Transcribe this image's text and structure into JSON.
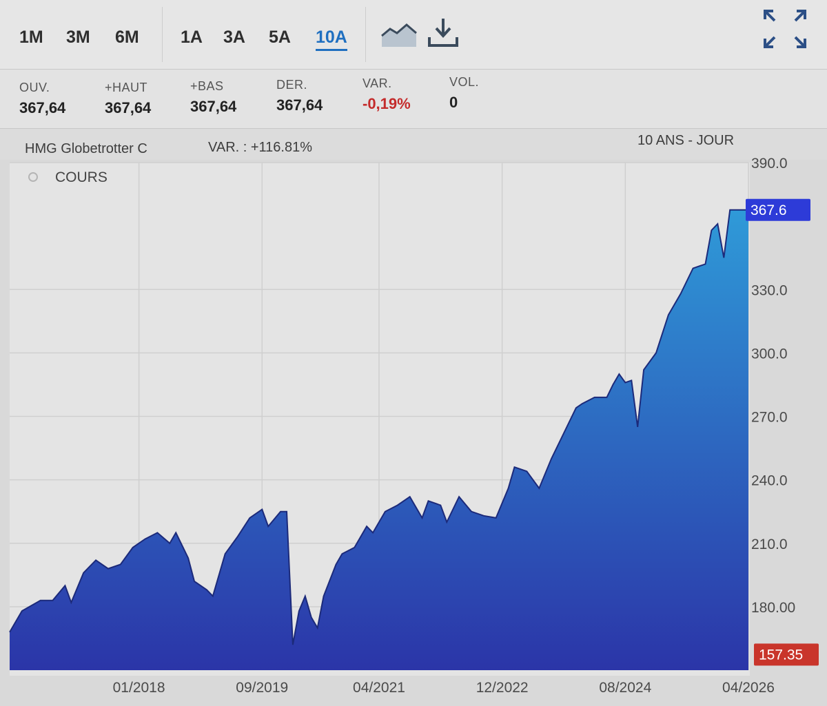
{
  "toolbar": {
    "ranges": [
      "1M",
      "3M",
      "6M",
      "1A",
      "3A",
      "5A",
      "10A"
    ],
    "active_range": "10A",
    "icons": [
      "area-chart-icon",
      "download-icon",
      "fullscreen-icon"
    ],
    "accent": "#1f6fc0"
  },
  "stats": [
    {
      "label": "OUV.",
      "value": "367,64"
    },
    {
      "label": "+HAUT",
      "value": "367,64"
    },
    {
      "label": "+BAS",
      "value": "367,64"
    },
    {
      "label": "DER.",
      "value": "367,64"
    },
    {
      "label": "VAR.",
      "value": "-0,19%"
    },
    {
      "label": "VOL.",
      "value": "0"
    }
  ],
  "chart_header": {
    "name": "HMG Globetrotter C",
    "variation": "VAR. : +116.81%",
    "period": "10 ANS - JOUR"
  },
  "chart_data": {
    "type": "area",
    "legend": "COURS",
    "ylim": [
      150,
      390
    ],
    "yticks": [
      "390.0",
      "330.0",
      "300.0",
      "270.0",
      "240.0",
      "210.0",
      "180.00"
    ],
    "xticks": [
      "01/2018",
      "09/2019",
      "04/2021",
      "12/2022",
      "08/2024",
      "04/2026"
    ],
    "last_value_label": "367.6",
    "min_value_label": "157.35",
    "colors": {
      "area_top": "#2f9ad8",
      "area_bottom": "#2b35a8",
      "line": "#1c2a7a",
      "last_badge": "#2d3bd8",
      "min_badge": "#c9352b"
    },
    "x_dates": [
      "2016-04",
      "2016-06",
      "2016-09",
      "2016-11",
      "2017-01",
      "2017-02",
      "2017-04",
      "2017-06",
      "2017-08",
      "2017-10",
      "2017-12",
      "2018-02",
      "2018-04",
      "2018-06",
      "2018-07",
      "2018-09",
      "2018-10",
      "2018-12",
      "2019-01",
      "2019-03",
      "2019-05",
      "2019-07",
      "2019-09",
      "2019-10",
      "2019-12",
      "2020-01",
      "2020-02",
      "2020-03",
      "2020-04",
      "2020-05",
      "2020-06",
      "2020-07",
      "2020-09",
      "2020-10",
      "2020-12",
      "2021-02",
      "2021-03",
      "2021-05",
      "2021-07",
      "2021-09",
      "2021-11",
      "2021-12",
      "2022-02",
      "2022-03",
      "2022-05",
      "2022-07",
      "2022-09",
      "2022-11",
      "2023-01",
      "2023-02",
      "2023-04",
      "2023-06",
      "2023-08",
      "2023-10",
      "2023-12",
      "2024-01",
      "2024-03",
      "2024-05",
      "2024-06",
      "2024-07",
      "2024-08",
      "2024-09",
      "2024-10",
      "2024-11",
      "2025-01",
      "2025-03",
      "2025-05",
      "2025-07",
      "2025-09",
      "2025-10",
      "2025-11",
      "2025-12",
      "2026-01",
      "2026-02",
      "2026-03",
      "2026-04"
    ],
    "values": [
      168,
      178,
      183,
      183,
      190,
      182,
      196,
      202,
      198,
      200,
      208,
      212,
      215,
      210,
      215,
      203,
      192,
      188,
      185,
      205,
      213,
      222,
      226,
      218,
      225,
      225,
      162,
      178,
      185,
      175,
      170,
      185,
      200,
      205,
      208,
      218,
      215,
      225,
      228,
      232,
      222,
      230,
      228,
      220,
      232,
      225,
      223,
      222,
      236,
      246,
      244,
      236,
      250,
      262,
      274,
      276,
      279,
      279,
      285,
      290,
      286,
      287,
      265,
      292,
      300,
      318,
      328,
      340,
      342,
      358,
      361,
      345,
      367.6,
      367.6,
      367.6,
      367.6
    ]
  }
}
